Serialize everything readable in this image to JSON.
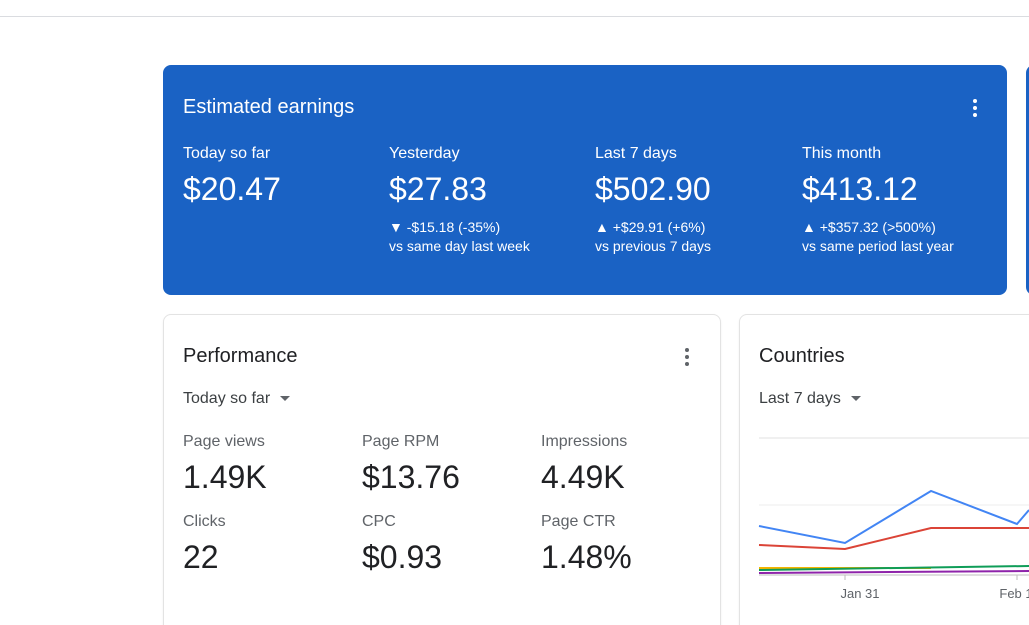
{
  "earnings": {
    "title": "Estimated earnings",
    "items": [
      {
        "label": "Today so far",
        "value": "$20.47"
      },
      {
        "label": "Yesterday",
        "value": "$27.83",
        "change": "▼ -$15.18 (-35%)",
        "comparison": "vs same day last week"
      },
      {
        "label": "Last 7 days",
        "value": "$502.90",
        "change": "▲ +$29.91 (+6%)",
        "comparison": "vs previous 7 days"
      },
      {
        "label": "This month",
        "value": "$413.12",
        "change": "▲ +$357.32 (>500%)",
        "comparison": "vs same period last year"
      }
    ]
  },
  "performance": {
    "title": "Performance",
    "period": "Today so far",
    "metrics": [
      {
        "label": "Page views",
        "value": "1.49K"
      },
      {
        "label": "Page RPM",
        "value": "$13.76"
      },
      {
        "label": "Impressions",
        "value": "4.49K"
      },
      {
        "label": "Clicks",
        "value": "22"
      },
      {
        "label": "CPC",
        "value": "$0.93"
      },
      {
        "label": "Page CTR",
        "value": "1.48%"
      }
    ]
  },
  "countries": {
    "title": "Countries",
    "period": "Last 7 days",
    "x_labels": [
      "Jan 31",
      "Feb 1"
    ]
  }
}
